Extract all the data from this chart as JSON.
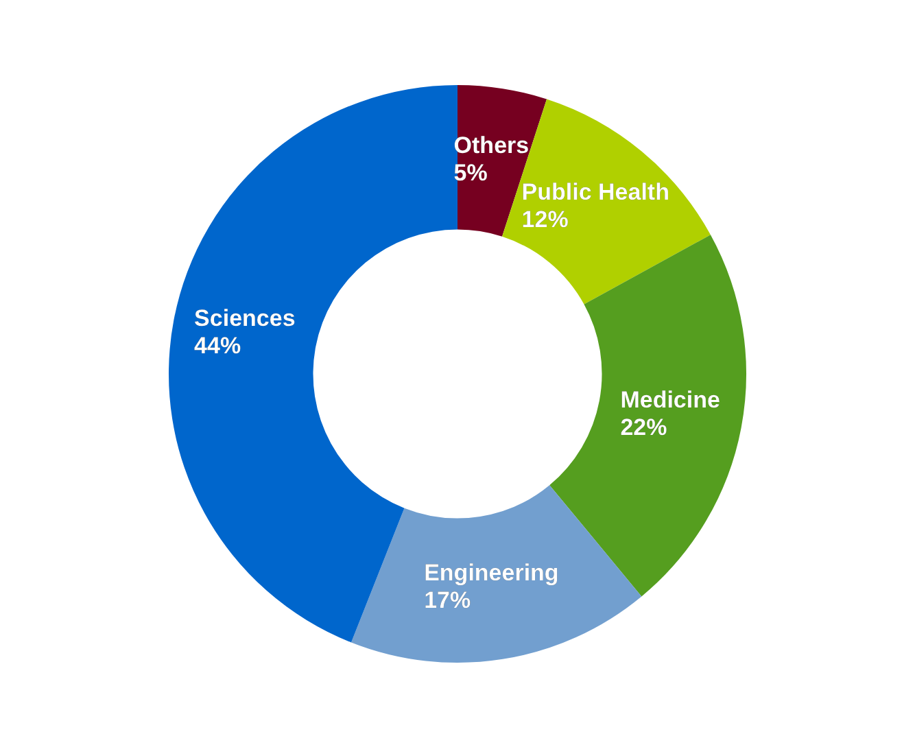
{
  "chart_data": {
    "type": "donut",
    "categories": [
      "Others",
      "Public Health",
      "Medicine",
      "Engineering",
      "Sciences"
    ],
    "values": [
      5,
      12,
      22,
      17,
      44
    ],
    "value_labels": [
      "5%",
      "12%",
      "22%",
      "17%",
      "44%"
    ],
    "colors": [
      "#760020",
      "#b0d000",
      "#559e1f",
      "#729fcf",
      "#0066cc"
    ],
    "legend": false
  }
}
